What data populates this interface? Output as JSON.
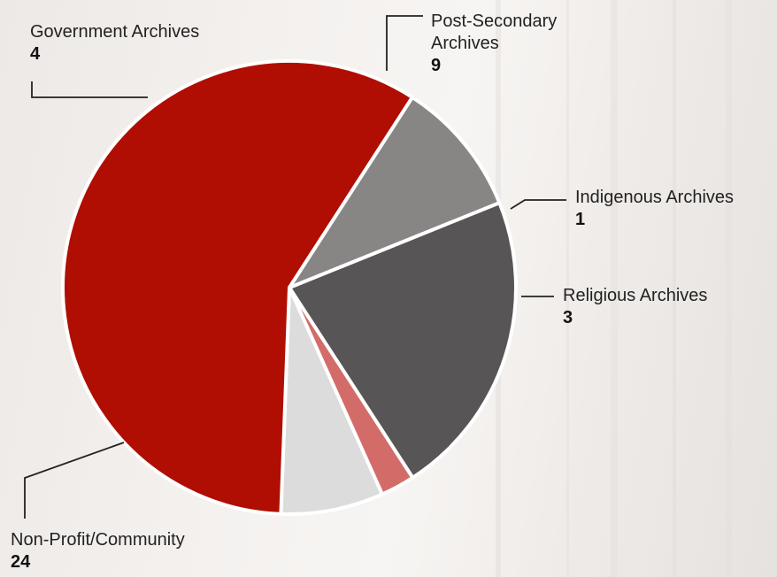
{
  "chart_data": {
    "type": "pie",
    "slices": [
      {
        "label": "Post-Secondary Archives",
        "label_lines": [
          "Post-Secondary",
          "Archives"
        ],
        "value": 9,
        "color": "#575556"
      },
      {
        "label": "Indigenous Archives",
        "label_lines": [
          "Indigenous Archives"
        ],
        "value": 1,
        "color": "#d36c68"
      },
      {
        "label": "Religious Archives",
        "label_lines": [
          "Religious Archives"
        ],
        "value": 3,
        "color": "#dcdcdd"
      },
      {
        "label": "Non-Profit/Community",
        "label_lines": [
          "Non-Profit/Community"
        ],
        "value": 24,
        "color": "#b00e02"
      },
      {
        "label": "Government Archives",
        "label_lines": [
          "Government Archives"
        ],
        "value": 4,
        "color": "#888585"
      }
    ],
    "start_angle_deg": -22,
    "direction": "clockwise",
    "legend": "callout labels",
    "slice_border_color": "#ffffff"
  }
}
